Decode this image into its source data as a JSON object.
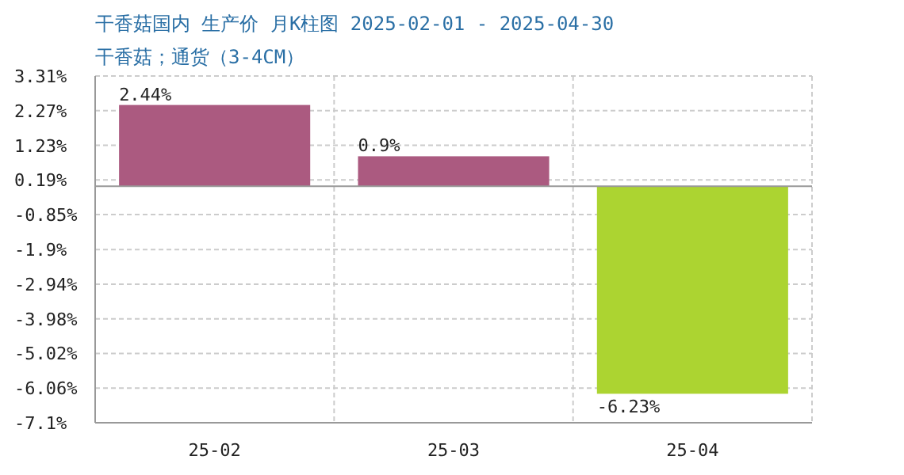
{
  "chart_data": {
    "type": "bar",
    "title": "干香菇国内 生产价 月K柱图 2025-02-01 - 2025-04-30",
    "subtitle": "干香菇；通货（3-4CM）",
    "categories": [
      "25-02",
      "25-03",
      "25-04"
    ],
    "values": [
      2.44,
      0.9,
      -6.23
    ],
    "colors": [
      "#ab5a80",
      "#ab5a80",
      "#acd431"
    ],
    "value_labels": [
      "2.44%",
      "0.9%",
      "-6.23%"
    ],
    "ylim": [
      -7.1,
      3.31
    ],
    "yticks": [
      {
        "value": 3.31,
        "label": "3.31%"
      },
      {
        "value": 2.27,
        "label": "2.27%"
      },
      {
        "value": 1.23,
        "label": "1.23%"
      },
      {
        "value": 0.19,
        "label": "0.19%"
      },
      {
        "value": -0.85,
        "label": "-0.85%"
      },
      {
        "value": -1.9,
        "label": "-1.9%"
      },
      {
        "value": -2.94,
        "label": "-2.94%"
      },
      {
        "value": -3.98,
        "label": "-3.98%"
      },
      {
        "value": -5.02,
        "label": "-5.02%"
      },
      {
        "value": -6.06,
        "label": "-6.06%"
      },
      {
        "value": -7.1,
        "label": "-7.1%"
      }
    ],
    "grid": true
  }
}
